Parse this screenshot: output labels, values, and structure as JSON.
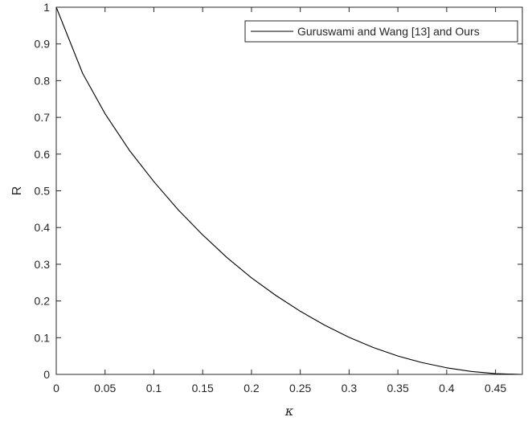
{
  "chart_data": {
    "type": "line",
    "title": "",
    "xlabel": "κ",
    "ylabel": "R",
    "xlim": [
      0,
      0.4775
    ],
    "ylim": [
      0,
      1
    ],
    "grid": false,
    "legend_position": "top-right",
    "x_ticks": [
      0,
      0.05,
      0.1,
      0.15,
      0.2,
      0.25,
      0.3,
      0.35,
      0.4,
      0.45
    ],
    "x_tick_labels": [
      "0",
      "0.05",
      "0.1",
      "0.15",
      "0.2",
      "0.25",
      "0.3",
      "0.35",
      "0.4",
      "0.45"
    ],
    "y_ticks": [
      0,
      0.1,
      0.2,
      0.3,
      0.4,
      0.5,
      0.6,
      0.7,
      0.8,
      0.9,
      1
    ],
    "y_tick_labels": [
      "0",
      "0.1",
      "0.2",
      "0.3",
      "0.4",
      "0.5",
      "0.6",
      "0.7",
      "0.8",
      "0.9",
      "1"
    ],
    "series": [
      {
        "name": "Guruswami and Wang [13] and Ours",
        "color": "#000000",
        "x": [
          0,
          0.027,
          0.05,
          0.075,
          0.1,
          0.125,
          0.15,
          0.175,
          0.2,
          0.225,
          0.25,
          0.275,
          0.3,
          0.325,
          0.35,
          0.375,
          0.4,
          0.425,
          0.45,
          0.4775
        ],
        "y": [
          1.0,
          0.82,
          0.71,
          0.61,
          0.525,
          0.448,
          0.38,
          0.318,
          0.263,
          0.215,
          0.172,
          0.134,
          0.101,
          0.073,
          0.05,
          0.032,
          0.018,
          0.008,
          0.002,
          0.0
        ]
      }
    ]
  }
}
